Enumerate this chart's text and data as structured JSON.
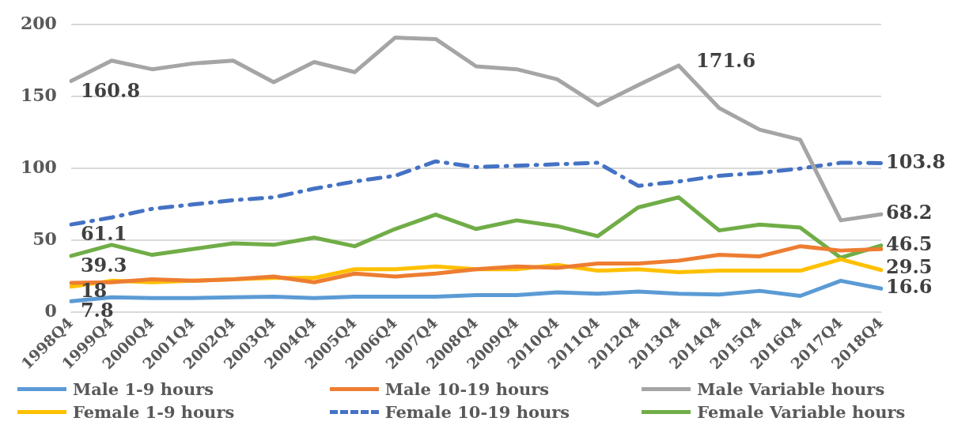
{
  "chart_data": {
    "type": "line",
    "categories": [
      "1998Q4",
      "1999Q4",
      "2000Q4",
      "2001Q4",
      "2002Q4",
      "2003Q4",
      "2004Q4",
      "2005Q4",
      "2006Q4",
      "2007Q4",
      "2008Q4",
      "2009Q4",
      "2010Q4",
      "2011Q4",
      "2012Q4",
      "2013Q4",
      "2014Q4",
      "2015Q4",
      "2016Q4",
      "2017Q4",
      "2018Q4"
    ],
    "series": [
      {
        "name": "Male 1-9 hours",
        "color": "#5b9bd5",
        "values": [
          7.8,
          10.5,
          10,
          10,
          10.5,
          11,
          10,
          11,
          11,
          11,
          12,
          12,
          14,
          13,
          14.5,
          13,
          12.5,
          15,
          11.5,
          22,
          16.6
        ],
        "value_labels": [
          "7.8",
          null,
          null,
          null,
          null,
          null,
          null,
          null,
          null,
          null,
          null,
          null,
          null,
          null,
          null,
          null,
          null,
          null,
          null,
          null,
          "16.6"
        ]
      },
      {
        "name": "Male 10-19 hours",
        "color": "#ed7d31",
        "values": [
          20.5,
          21,
          23,
          22,
          23,
          25,
          21,
          27,
          25,
          27,
          30,
          32,
          31,
          34,
          34,
          36,
          40,
          39,
          46,
          43,
          44
        ]
      },
      {
        "name": "Male Variable hours",
        "color": "#a5a5a5",
        "values": [
          160.8,
          175,
          169,
          173,
          175,
          160,
          174,
          167,
          191,
          190,
          171,
          169,
          162,
          144,
          158,
          171.6,
          142,
          127,
          120,
          64,
          68.2
        ],
        "value_labels": [
          "160.8",
          null,
          null,
          null,
          null,
          null,
          null,
          null,
          null,
          null,
          null,
          null,
          null,
          null,
          null,
          "171.6",
          null,
          null,
          null,
          null,
          "68.2"
        ]
      },
      {
        "name": "Female 1-9 hours",
        "color": "#ffc000",
        "values": [
          18,
          22,
          21,
          22,
          23,
          24,
          24,
          30,
          30,
          32,
          30,
          30,
          33,
          29,
          30,
          28,
          29,
          29,
          29,
          37,
          29.5
        ],
        "value_labels": [
          "18",
          null,
          null,
          null,
          null,
          null,
          null,
          null,
          null,
          null,
          null,
          null,
          null,
          null,
          null,
          null,
          null,
          null,
          null,
          null,
          "29.5"
        ]
      },
      {
        "name": "Female 10-19 hours",
        "color": "#4472c4",
        "line_style": "dashed",
        "values": [
          61.1,
          66,
          72,
          75,
          78,
          80,
          86,
          91,
          95,
          105,
          101,
          102,
          103,
          104,
          88,
          91,
          95,
          97,
          100,
          104,
          103.8
        ],
        "value_labels": [
          "61.1",
          null,
          null,
          null,
          null,
          null,
          null,
          null,
          null,
          null,
          null,
          null,
          null,
          null,
          null,
          null,
          null,
          null,
          null,
          null,
          "103.8"
        ]
      },
      {
        "name": "Female Variable hours",
        "color": "#70ad47",
        "values": [
          39.3,
          47,
          40,
          44,
          48,
          47,
          52,
          46,
          58,
          68,
          58,
          64,
          60,
          53,
          73,
          80,
          57,
          61,
          59,
          38,
          46.5
        ],
        "value_labels": [
          "39.3",
          null,
          null,
          null,
          null,
          null,
          null,
          null,
          null,
          null,
          null,
          null,
          null,
          null,
          null,
          null,
          null,
          null,
          null,
          null,
          "46.5"
        ]
      }
    ],
    "ylim": [
      0,
      200
    ],
    "yticks": [
      0,
      50,
      100,
      150,
      200
    ],
    "grid": "y",
    "legend": "bottom",
    "marker": "none",
    "line_style": "solid"
  }
}
